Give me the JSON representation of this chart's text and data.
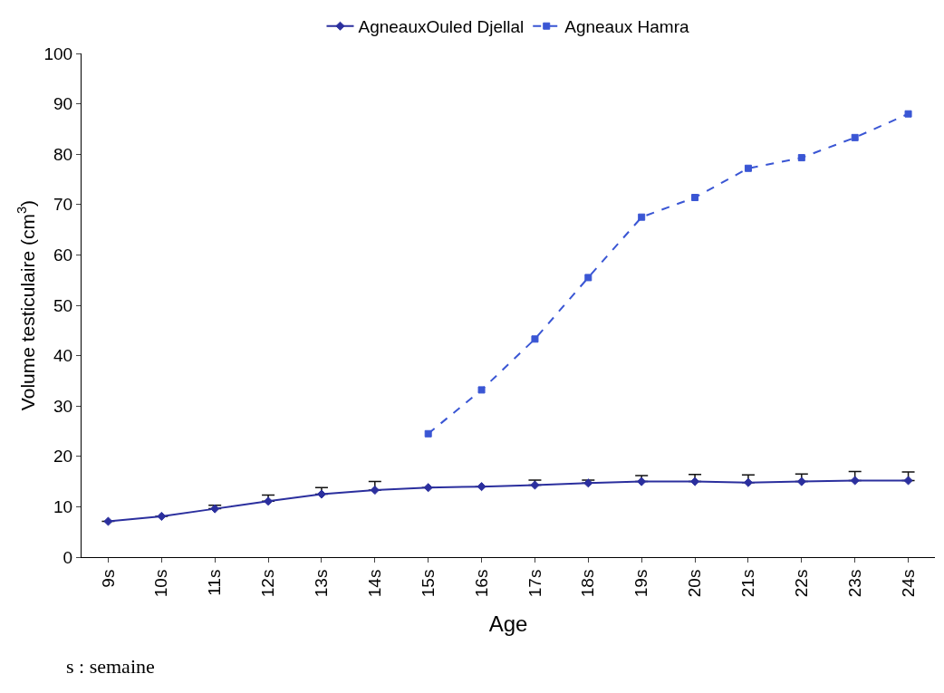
{
  "chart_data": {
    "type": "line",
    "xlabel": "Age",
    "ylabel": "Volume testiculaire (cm$^{3}$)",
    "categories": [
      "9s",
      "10s",
      "11s",
      "12s",
      "13s",
      "14s",
      "15s",
      "16s",
      "17s",
      "18s",
      "19s",
      "20s",
      "21s",
      "22s",
      "23s",
      "24s"
    ],
    "series": [
      {
        "name": "AgneauxOuled Djellal",
        "color": "#2b2f9e",
        "marker": "diamond",
        "line_style": "solid",
        "values": [
          7.1,
          8.1,
          9.6,
          11.1,
          12.5,
          13.3,
          13.8,
          14.0,
          14.3,
          14.7,
          15.0,
          15.0,
          14.8,
          15.0,
          15.2,
          15.2
        ],
        "errors": [
          null,
          null,
          [
            9.6,
            10.3
          ],
          [
            11.1,
            12.3
          ],
          [
            12.5,
            13.8
          ],
          [
            13.3,
            15.0
          ],
          null,
          null,
          [
            14.3,
            15.3
          ],
          [
            14.7,
            15.3
          ],
          [
            15.0,
            16.2
          ],
          [
            15.0,
            16.4
          ],
          [
            14.8,
            16.3
          ],
          [
            15.0,
            16.5
          ],
          [
            15.2,
            17.0
          ],
          [
            15.2,
            16.9
          ]
        ]
      },
      {
        "name": "Agneaux Hamra",
        "color": "#3a56d4",
        "marker": "square",
        "line_style": "dashed",
        "values": [
          null,
          null,
          null,
          null,
          null,
          null,
          24.5,
          33.2,
          43.3,
          55.5,
          67.5,
          71.4,
          77.2,
          79.3,
          83.3,
          88.0
        ]
      }
    ],
    "ylim": [
      0,
      100
    ],
    "yticks": [
      0,
      10,
      20,
      30,
      40,
      50,
      60,
      70,
      80,
      90,
      100
    ],
    "grid": false,
    "legend": "top",
    "annotations": [
      "s : semaine"
    ]
  }
}
